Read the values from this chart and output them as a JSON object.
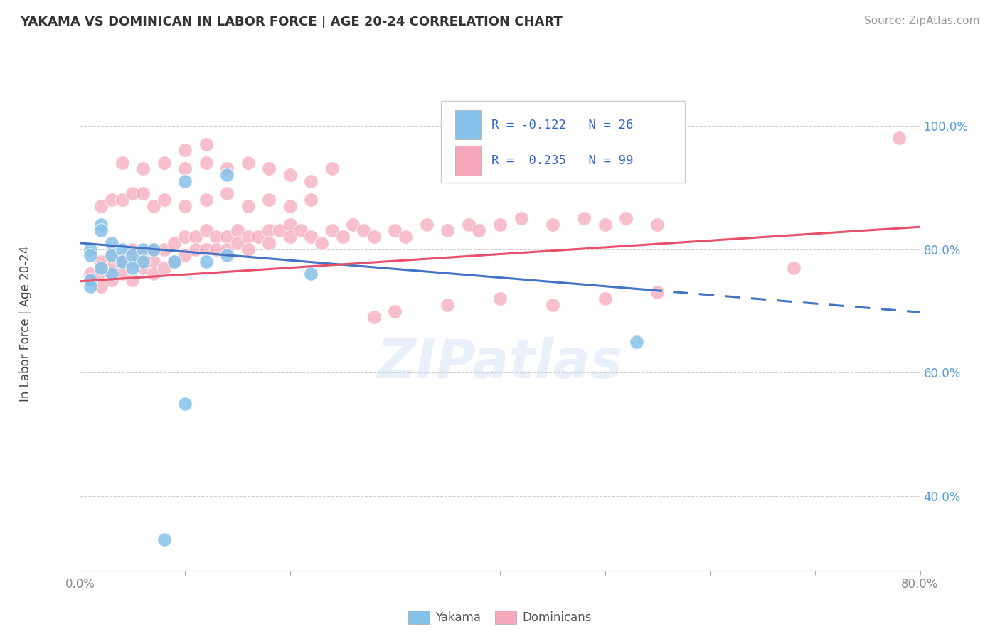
{
  "title": "YAKAMA VS DOMINICAN IN LABOR FORCE | AGE 20-24 CORRELATION CHART",
  "source_text": "Source: ZipAtlas.com",
  "ylabel": "In Labor Force | Age 20-24",
  "xlim": [
    0.0,
    0.8
  ],
  "ylim": [
    0.28,
    1.08
  ],
  "yakama_color": "#85C1E8",
  "dominicans_color": "#F5A8BC",
  "trend_yakama_color": "#4472C4",
  "trend_dominicans_color": "#E8506A",
  "watermark": "ZIPatlas",
  "background_color": "#ffffff",
  "grid_color": "#d0d0d0",
  "legend_r_yakama": "-0.122",
  "legend_n_yakama": "26",
  "legend_r_dominicans": "0.235",
  "legend_n_dominicans": "99",
  "yakama_x": [
    0.01,
    0.01,
    0.02,
    0.02,
    0.03,
    0.03,
    0.04,
    0.04,
    0.05,
    0.06,
    0.06,
    0.07,
    0.09,
    0.12,
    0.14,
    0.22,
    0.1,
    0.14,
    0.05,
    0.03,
    0.02,
    0.01,
    0.01,
    0.53,
    0.1,
    0.08
  ],
  "yakama_y": [
    0.8,
    0.79,
    0.84,
    0.83,
    0.81,
    0.79,
    0.8,
    0.78,
    0.79,
    0.8,
    0.78,
    0.8,
    0.78,
    0.78,
    0.79,
    0.76,
    0.91,
    0.92,
    0.77,
    0.76,
    0.77,
    0.75,
    0.74,
    0.65,
    0.55,
    0.33
  ],
  "dominicans_x": [
    0.01,
    0.01,
    0.02,
    0.02,
    0.02,
    0.03,
    0.03,
    0.03,
    0.04,
    0.04,
    0.05,
    0.05,
    0.05,
    0.06,
    0.06,
    0.07,
    0.07,
    0.07,
    0.08,
    0.08,
    0.09,
    0.09,
    0.1,
    0.1,
    0.11,
    0.11,
    0.12,
    0.12,
    0.13,
    0.13,
    0.14,
    0.14,
    0.15,
    0.15,
    0.16,
    0.16,
    0.17,
    0.18,
    0.18,
    0.19,
    0.2,
    0.2,
    0.21,
    0.22,
    0.23,
    0.24,
    0.25,
    0.26,
    0.27,
    0.28,
    0.3,
    0.31,
    0.33,
    0.35,
    0.37,
    0.38,
    0.4,
    0.42,
    0.45,
    0.48,
    0.5,
    0.52,
    0.55,
    0.28,
    0.3,
    0.35,
    0.4,
    0.45,
    0.5,
    0.55,
    0.02,
    0.03,
    0.04,
    0.05,
    0.06,
    0.07,
    0.08,
    0.1,
    0.12,
    0.14,
    0.16,
    0.18,
    0.2,
    0.22,
    0.04,
    0.06,
    0.08,
    0.1,
    0.12,
    0.14,
    0.16,
    0.18,
    0.2,
    0.22,
    0.24,
    0.1,
    0.12,
    0.68,
    0.78
  ],
  "dominicans_y": [
    0.76,
    0.75,
    0.78,
    0.76,
    0.74,
    0.79,
    0.77,
    0.75,
    0.78,
    0.76,
    0.8,
    0.78,
    0.75,
    0.79,
    0.77,
    0.8,
    0.78,
    0.76,
    0.8,
    0.77,
    0.81,
    0.78,
    0.82,
    0.79,
    0.82,
    0.8,
    0.83,
    0.8,
    0.82,
    0.8,
    0.82,
    0.8,
    0.83,
    0.81,
    0.82,
    0.8,
    0.82,
    0.83,
    0.81,
    0.83,
    0.84,
    0.82,
    0.83,
    0.82,
    0.81,
    0.83,
    0.82,
    0.84,
    0.83,
    0.82,
    0.83,
    0.82,
    0.84,
    0.83,
    0.84,
    0.83,
    0.84,
    0.85,
    0.84,
    0.85,
    0.84,
    0.85,
    0.84,
    0.69,
    0.7,
    0.71,
    0.72,
    0.71,
    0.72,
    0.73,
    0.87,
    0.88,
    0.88,
    0.89,
    0.89,
    0.87,
    0.88,
    0.87,
    0.88,
    0.89,
    0.87,
    0.88,
    0.87,
    0.88,
    0.94,
    0.93,
    0.94,
    0.93,
    0.94,
    0.93,
    0.94,
    0.93,
    0.92,
    0.91,
    0.93,
    0.96,
    0.97,
    0.77,
    0.98
  ]
}
